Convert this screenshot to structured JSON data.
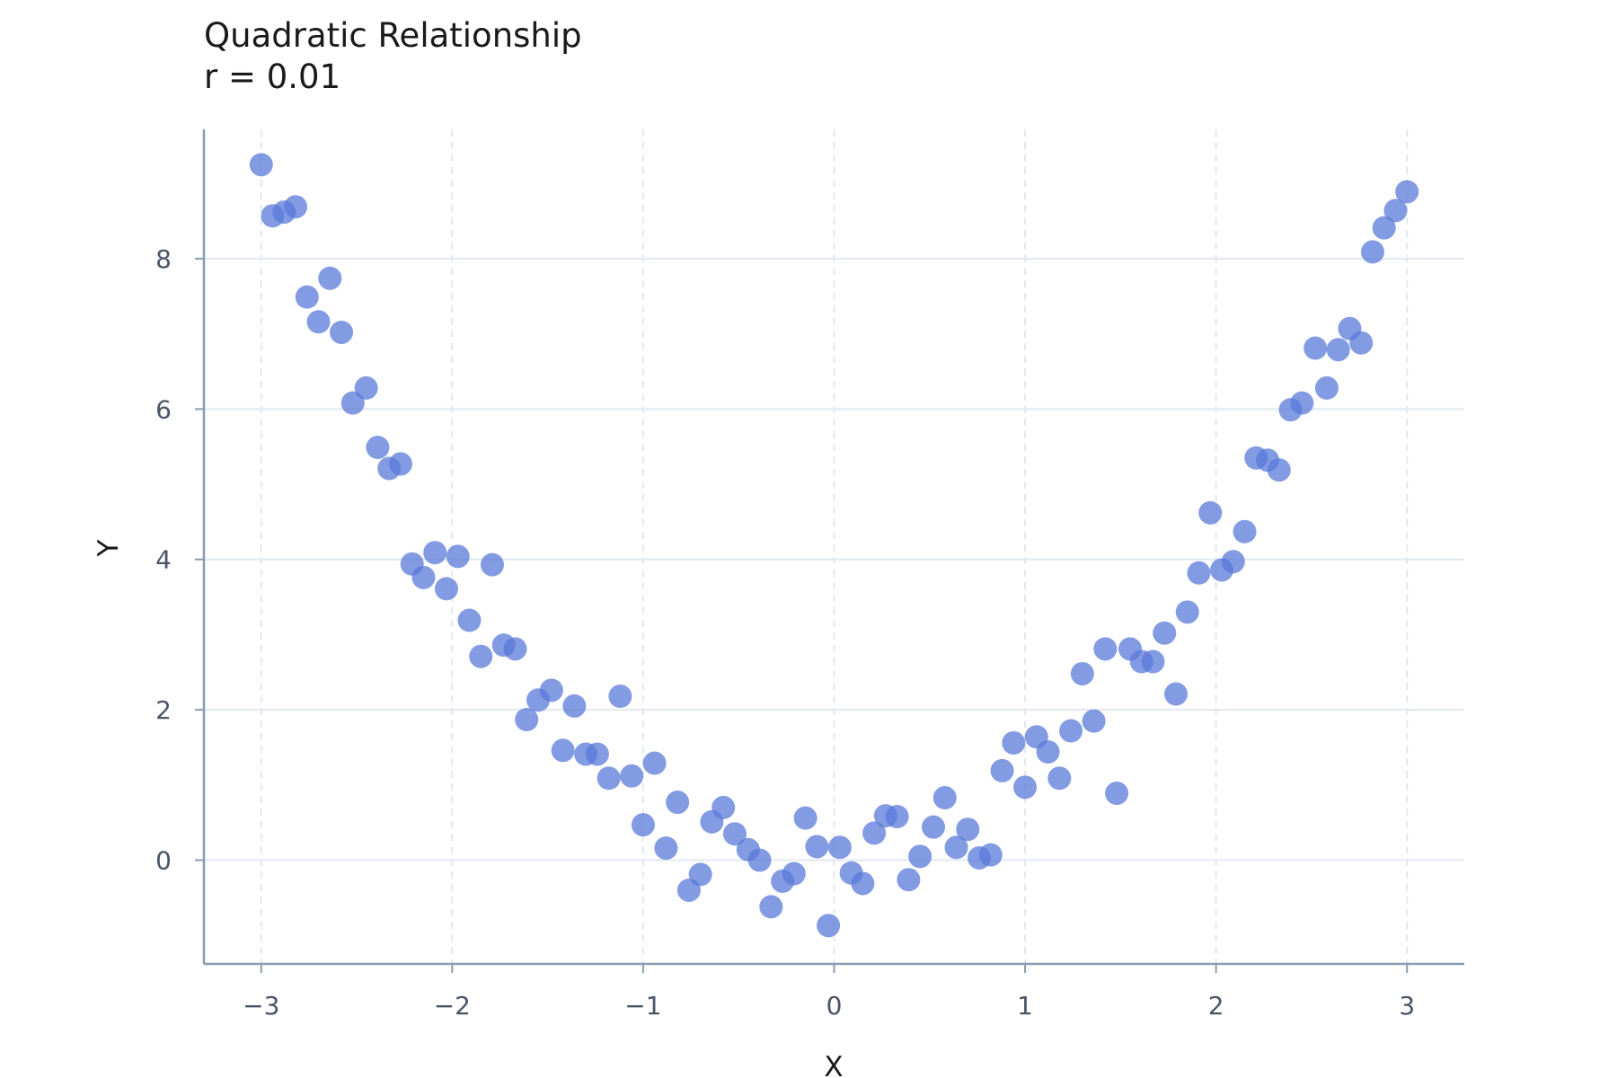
{
  "chart_data": {
    "type": "scatter",
    "title": "Quadratic Relationship",
    "subtitle": "r = 0.01",
    "xlabel": "X",
    "ylabel": "Y",
    "xlim": [
      -3.3,
      3.3
    ],
    "ylim": [
      -1.38,
      9.72
    ],
    "xticks": [
      -3,
      -2,
      -1,
      0,
      1,
      2,
      3
    ],
    "yticks": [
      0,
      2,
      4,
      6,
      8
    ],
    "grid": true,
    "point_color": "#5a79d8",
    "x": [
      -3.0,
      -2.94,
      -2.88,
      -2.82,
      -2.76,
      -2.7,
      -2.64,
      -2.58,
      -2.52,
      -2.45,
      -2.39,
      -2.33,
      -2.27,
      -2.21,
      -2.15,
      -2.09,
      -2.03,
      -1.97,
      -1.91,
      -1.85,
      -1.79,
      -1.73,
      -1.67,
      -1.61,
      -1.55,
      -1.48,
      -1.42,
      -1.36,
      -1.3,
      -1.24,
      -1.18,
      -1.12,
      -1.06,
      -1.0,
      -0.94,
      -0.88,
      -0.82,
      -0.76,
      -0.7,
      -0.64,
      -0.58,
      -0.52,
      -0.45,
      -0.39,
      -0.33,
      -0.27,
      -0.21,
      -0.15,
      -0.09,
      -0.03,
      0.03,
      0.09,
      0.15,
      0.21,
      0.27,
      0.33,
      0.39,
      0.45,
      0.52,
      0.58,
      0.64,
      0.7,
      0.76,
      0.82,
      0.88,
      0.94,
      1.0,
      1.06,
      1.12,
      1.18,
      1.24,
      1.3,
      1.36,
      1.42,
      1.48,
      1.55,
      1.61,
      1.67,
      1.73,
      1.79,
      1.85,
      1.91,
      1.97,
      2.03,
      2.09,
      2.15,
      2.21,
      2.27,
      2.33,
      2.39,
      2.45,
      2.52,
      2.58,
      2.64,
      2.7,
      2.76,
      2.82,
      2.88,
      2.94,
      3.0
    ],
    "y": [
      9.25,
      8.57,
      8.62,
      8.69,
      7.49,
      7.16,
      7.74,
      7.02,
      6.08,
      6.28,
      5.49,
      5.21,
      5.27,
      3.94,
      3.76,
      4.09,
      3.61,
      4.04,
      3.19,
      2.71,
      3.93,
      2.86,
      2.81,
      1.87,
      2.13,
      2.26,
      1.46,
      2.05,
      1.41,
      1.41,
      1.09,
      2.18,
      1.12,
      0.47,
      1.29,
      0.16,
      0.77,
      -0.4,
      -0.19,
      0.51,
      0.7,
      0.35,
      0.14,
      0.0,
      -0.62,
      -0.28,
      -0.18,
      0.56,
      0.18,
      -0.87,
      0.17,
      -0.17,
      -0.31,
      0.36,
      0.59,
      0.58,
      -0.26,
      0.05,
      0.44,
      0.83,
      0.17,
      0.41,
      0.03,
      0.07,
      1.19,
      1.56,
      0.97,
      1.64,
      1.44,
      1.09,
      1.72,
      2.48,
      1.85,
      2.81,
      0.89,
      2.81,
      2.64,
      2.64,
      3.02,
      2.21,
      3.3,
      3.82,
      4.62,
      3.86,
      3.97,
      4.37,
      5.35,
      5.32,
      5.19,
      5.99,
      6.08,
      6.81,
      6.28,
      6.79,
      7.07,
      6.88,
      8.09,
      8.41,
      8.64,
      8.89
    ]
  }
}
